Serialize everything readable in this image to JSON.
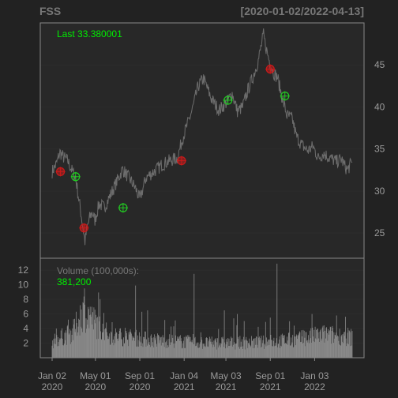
{
  "header": {
    "symbol": "FSS",
    "date_range": "[2020-01-02/2022-04-13]"
  },
  "price_panel": {
    "last_label": "Last 33.380001"
  },
  "volume_panel": {
    "label": "Volume (100,000s):",
    "last_value": "381,200"
  },
  "colors": {
    "background": "#222222",
    "panel_border": "#888888",
    "grid": "#2c2c2c",
    "price_line": "#6d6d6d",
    "volume_bar": "#8a8a8a",
    "header_text": "#777777",
    "axis_text": "#9a9a9a",
    "accent_green": "#00ee00",
    "marker_red": "#cc1a1a",
    "marker_green": "#22cc22"
  },
  "chart_data": [
    {
      "type": "line",
      "name": "price",
      "ylim": [
        22,
        50
      ],
      "y_ticks": [
        25,
        30,
        35,
        40,
        45
      ],
      "x_index_range": [
        0,
        575
      ],
      "x": [
        0,
        8,
        15,
        22,
        30,
        38,
        45,
        50,
        55,
        60,
        63,
        67,
        72,
        77,
        82,
        90,
        100,
        110,
        120,
        135,
        150,
        160,
        168,
        180,
        195,
        210,
        225,
        240,
        250,
        260,
        270,
        280,
        290,
        305,
        320,
        335,
        345,
        355,
        365,
        375,
        385,
        395,
        405,
        410,
        417,
        425,
        432,
        440,
        450,
        460,
        468,
        478,
        490,
        500,
        510,
        520,
        530,
        545,
        555,
        560,
        566,
        572,
        575
      ],
      "y": [
        32.3,
        33.2,
        34.6,
        34.0,
        33.6,
        32.4,
        31.6,
        29.5,
        27.5,
        25.2,
        24.0,
        25.6,
        26.8,
        27.5,
        26.5,
        28.5,
        28.0,
        29.3,
        30.6,
        32.6,
        31.3,
        30.3,
        29.0,
        31.6,
        32.3,
        33.1,
        33.6,
        33.9,
        36.3,
        38.0,
        40.0,
        42.5,
        43.4,
        41.0,
        39.6,
        40.6,
        41.6,
        39.5,
        40.0,
        42.0,
        43.6,
        45.5,
        48.6,
        47.0,
        45.3,
        44.0,
        43.5,
        41.3,
        39.0,
        38.6,
        36.5,
        35.5,
        34.8,
        35.3,
        33.9,
        34.5,
        34.0,
        33.5,
        33.8,
        33.0,
        32.5,
        33.2,
        33.38
      ],
      "markers": [
        {
          "x": 16,
          "y": 32.3,
          "type": "red"
        },
        {
          "x": 45,
          "y": 31.7,
          "type": "green"
        },
        {
          "x": 61,
          "y": 25.6,
          "type": "red"
        },
        {
          "x": 136,
          "y": 28.0,
          "type": "green"
        },
        {
          "x": 248,
          "y": 33.6,
          "type": "red"
        },
        {
          "x": 337,
          "y": 40.8,
          "type": "green"
        },
        {
          "x": 418,
          "y": 44.5,
          "type": "red"
        },
        {
          "x": 446,
          "y": 41.3,
          "type": "green"
        }
      ]
    },
    {
      "type": "bar",
      "name": "volume",
      "ylabel": "Volume (100,000s)",
      "ylim": [
        0,
        13
      ],
      "y_ticks": [
        2,
        4,
        6,
        8,
        10,
        12
      ],
      "x_labels": [
        {
          "index": 0,
          "line1": "Jan 02",
          "line2": "2020"
        },
        {
          "index": 83,
          "line1": "May 01",
          "line2": "2020"
        },
        {
          "index": 168,
          "line1": "Sep 01",
          "line2": "2020"
        },
        {
          "index": 253,
          "line1": "Jan 04",
          "line2": "2021"
        },
        {
          "index": 333,
          "line1": "May 03",
          "line2": "2021"
        },
        {
          "index": 418,
          "line1": "Sep 01",
          "line2": "2021"
        },
        {
          "index": 503,
          "line1": "Jan 03",
          "line2": "2022"
        }
      ],
      "spikes": [
        {
          "x": 62,
          "value": 9.5
        },
        {
          "x": 73,
          "value": 7.0
        },
        {
          "x": 160,
          "value": 9.9
        },
        {
          "x": 183,
          "value": 6.5
        },
        {
          "x": 272,
          "value": 11.5
        },
        {
          "x": 330,
          "value": 6.5
        },
        {
          "x": 355,
          "value": 6.0
        },
        {
          "x": 418,
          "value": 5.5
        },
        {
          "x": 431,
          "value": 12.9
        },
        {
          "x": 455,
          "value": 5.0
        },
        {
          "x": 498,
          "value": 6.0
        },
        {
          "x": 545,
          "value": 5.8
        }
      ],
      "base_levels": [
        {
          "x": 0,
          "value": 2.2
        },
        {
          "x": 40,
          "value": 3.5
        },
        {
          "x": 60,
          "value": 6.5
        },
        {
          "x": 80,
          "value": 5.0
        },
        {
          "x": 110,
          "value": 3.0
        },
        {
          "x": 200,
          "value": 2.4
        },
        {
          "x": 300,
          "value": 2.0
        },
        {
          "x": 400,
          "value": 2.1
        },
        {
          "x": 470,
          "value": 2.5
        },
        {
          "x": 520,
          "value": 3.2
        },
        {
          "x": 575,
          "value": 2.8
        }
      ]
    }
  ]
}
